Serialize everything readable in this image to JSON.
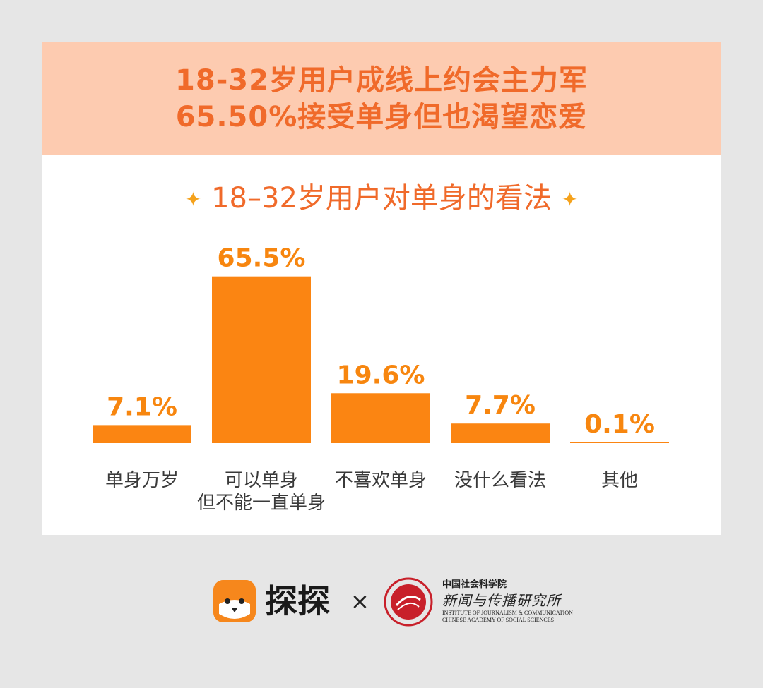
{
  "header": {
    "line1": "18-32岁用户成线上约会主力军",
    "line2": "65.50%接受单身但也渴望恋爱"
  },
  "subtitle": {
    "star_left": "✦",
    "text": "18–32岁用户对单身的看法",
    "star_right": "✦"
  },
  "colors": {
    "bar": "#fb8512",
    "value_label": "#f7860f",
    "header_bg": "#fdcbb0",
    "header_text": "#f06a2a",
    "page_bg": "#e6e6e6"
  },
  "chart_data": {
    "type": "bar",
    "title": "18–32岁用户对单身的看法",
    "xlabel": "",
    "ylabel": "",
    "ylim": [
      0,
      70
    ],
    "grid": false,
    "categories": [
      [
        "单身万岁"
      ],
      [
        "可以单身",
        "但不能一直单身"
      ],
      [
        "不喜欢单身"
      ],
      [
        "没什么看法"
      ],
      [
        "其他"
      ]
    ],
    "values": [
      7.1,
      65.5,
      19.6,
      7.7,
      0.1
    ],
    "value_labels": [
      "7.1%",
      "65.5%",
      "19.6%",
      "7.7%",
      "0.1%"
    ]
  },
  "footer": {
    "app_icon": "fox-face-icon",
    "app_name": "探探",
    "times": "×",
    "seal_icon": "institute-seal-icon",
    "inst_cn1": "中国社会科学院",
    "inst_cn2": "新闻与传播研究所",
    "inst_en1": "INSTITUTE OF JOURNALISM & COMMUNICATION",
    "inst_en2": "CHINESE ACADEMY OF SOCIAL SCIENCES"
  }
}
